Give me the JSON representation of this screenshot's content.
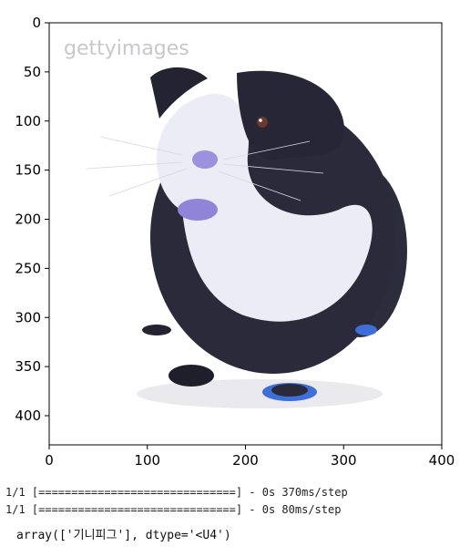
{
  "plot": {
    "x_ticks": [
      "0",
      "100",
      "200",
      "300",
      "400"
    ],
    "y_ticks": [
      "0",
      "50",
      "100",
      "150",
      "200",
      "250",
      "300",
      "350",
      "400"
    ],
    "watermark": "gettyimages",
    "image_subject": "guinea-pig"
  },
  "colors": {
    "fur_dark": "#2a2a3a",
    "fur_light": "#e8e8f4",
    "accent_purple": "#8e84d6",
    "feet_blue": "#3f6fd6"
  },
  "console": {
    "log_1": "1/1 [==============================] - 0s 370ms/step",
    "log_2": "1/1 [==============================] - 0s 80ms/step",
    "result": "array(['기니피그'], dtype='<U4')"
  }
}
